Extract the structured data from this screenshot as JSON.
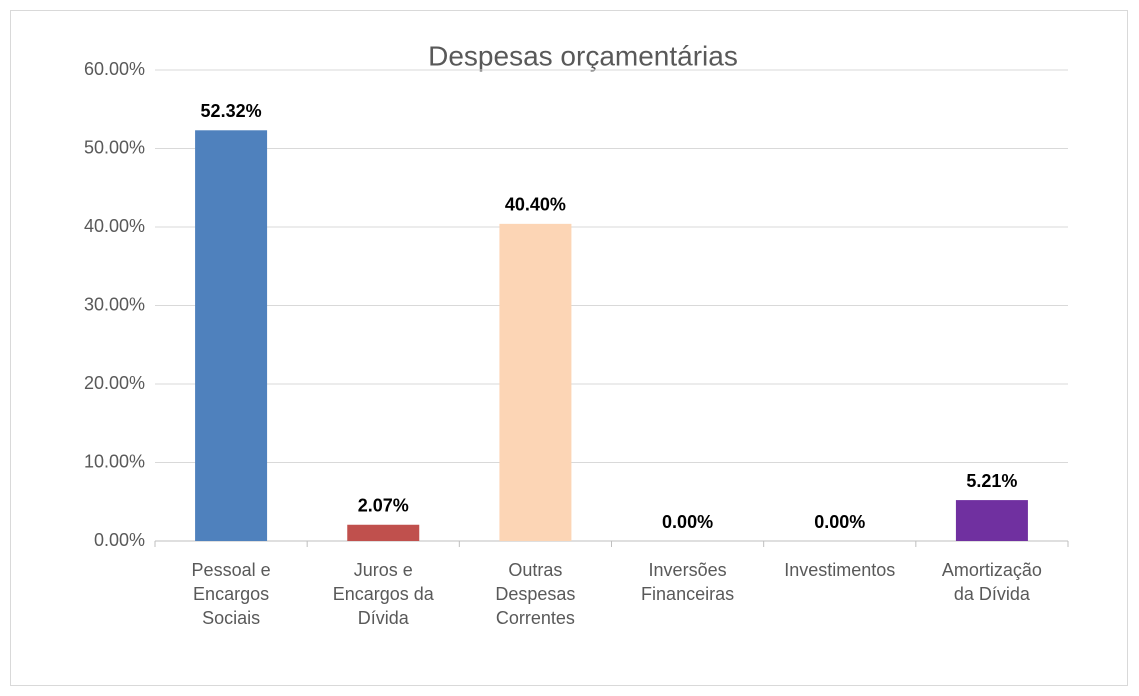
{
  "chart_data": {
    "type": "bar",
    "title": "Despesas orçamentárias",
    "categories": [
      "Pessoal e Encargos Sociais",
      "Juros e Encargos da Dívida",
      "Outras Despesas Correntes",
      "Inversões Financeiras",
      "Investimentos",
      "Amortização da Dívida"
    ],
    "values": [
      52.32,
      2.07,
      40.4,
      0,
      0,
      5.21
    ],
    "value_labels": [
      "52.32%",
      "2.07%",
      "40.40%",
      "0.00%",
      "0.00%",
      "5.21%"
    ],
    "colors": [
      "#4f81bd",
      "#c0504d",
      "#fcd5b5",
      "#9bbb59",
      "#4bacc6",
      "#7030a0"
    ],
    "ylim": [
      0,
      60
    ],
    "yticks": [
      {
        "value": 0,
        "label": "0.00%"
      },
      {
        "value": 10,
        "label": "10.00%"
      },
      {
        "value": 20,
        "label": "20.00%"
      },
      {
        "value": 30,
        "label": "30.00%"
      },
      {
        "value": 40,
        "label": "40.00%"
      },
      {
        "value": 50,
        "label": "50.00%"
      },
      {
        "value": 60,
        "label": "60.00%"
      }
    ],
    "grid": true
  }
}
